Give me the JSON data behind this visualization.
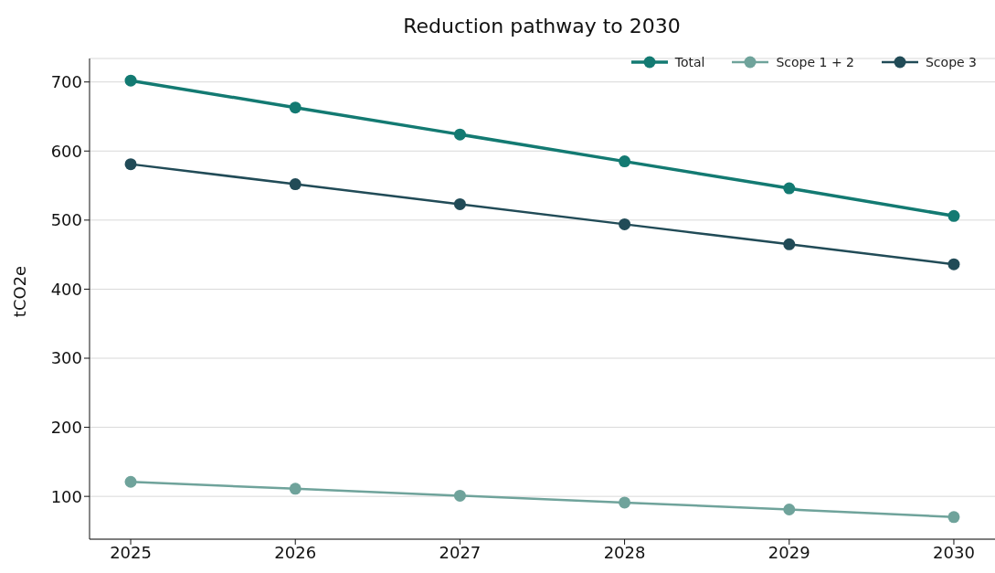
{
  "chart_data": {
    "type": "line",
    "title": "Reduction pathway to 2030",
    "ylabel": "tCO2e",
    "x": [
      2025,
      2026,
      2027,
      2028,
      2029,
      2030
    ],
    "series": [
      {
        "name": "Total",
        "color": "#137a72",
        "values": [
          702,
          663,
          624,
          585,
          546,
          506
        ]
      },
      {
        "name": "Scope 1 + 2",
        "color": "#6fa39b",
        "values": [
          121,
          111,
          101,
          91,
          81,
          70
        ]
      },
      {
        "name": "Scope 3",
        "color": "#214b57",
        "values": [
          581,
          552,
          523,
          494,
          465,
          436
        ]
      }
    ],
    "xlim": [
      2024.75,
      2030.25
    ],
    "xticks": [
      2025,
      2026,
      2027,
      2028,
      2029,
      2030
    ],
    "ylim": [
      38,
      734
    ],
    "yticks": [
      100,
      200,
      300,
      400,
      500,
      600,
      700
    ],
    "grid": "y",
    "legend": "top right",
    "marker": "circle",
    "line_style": "solid"
  }
}
